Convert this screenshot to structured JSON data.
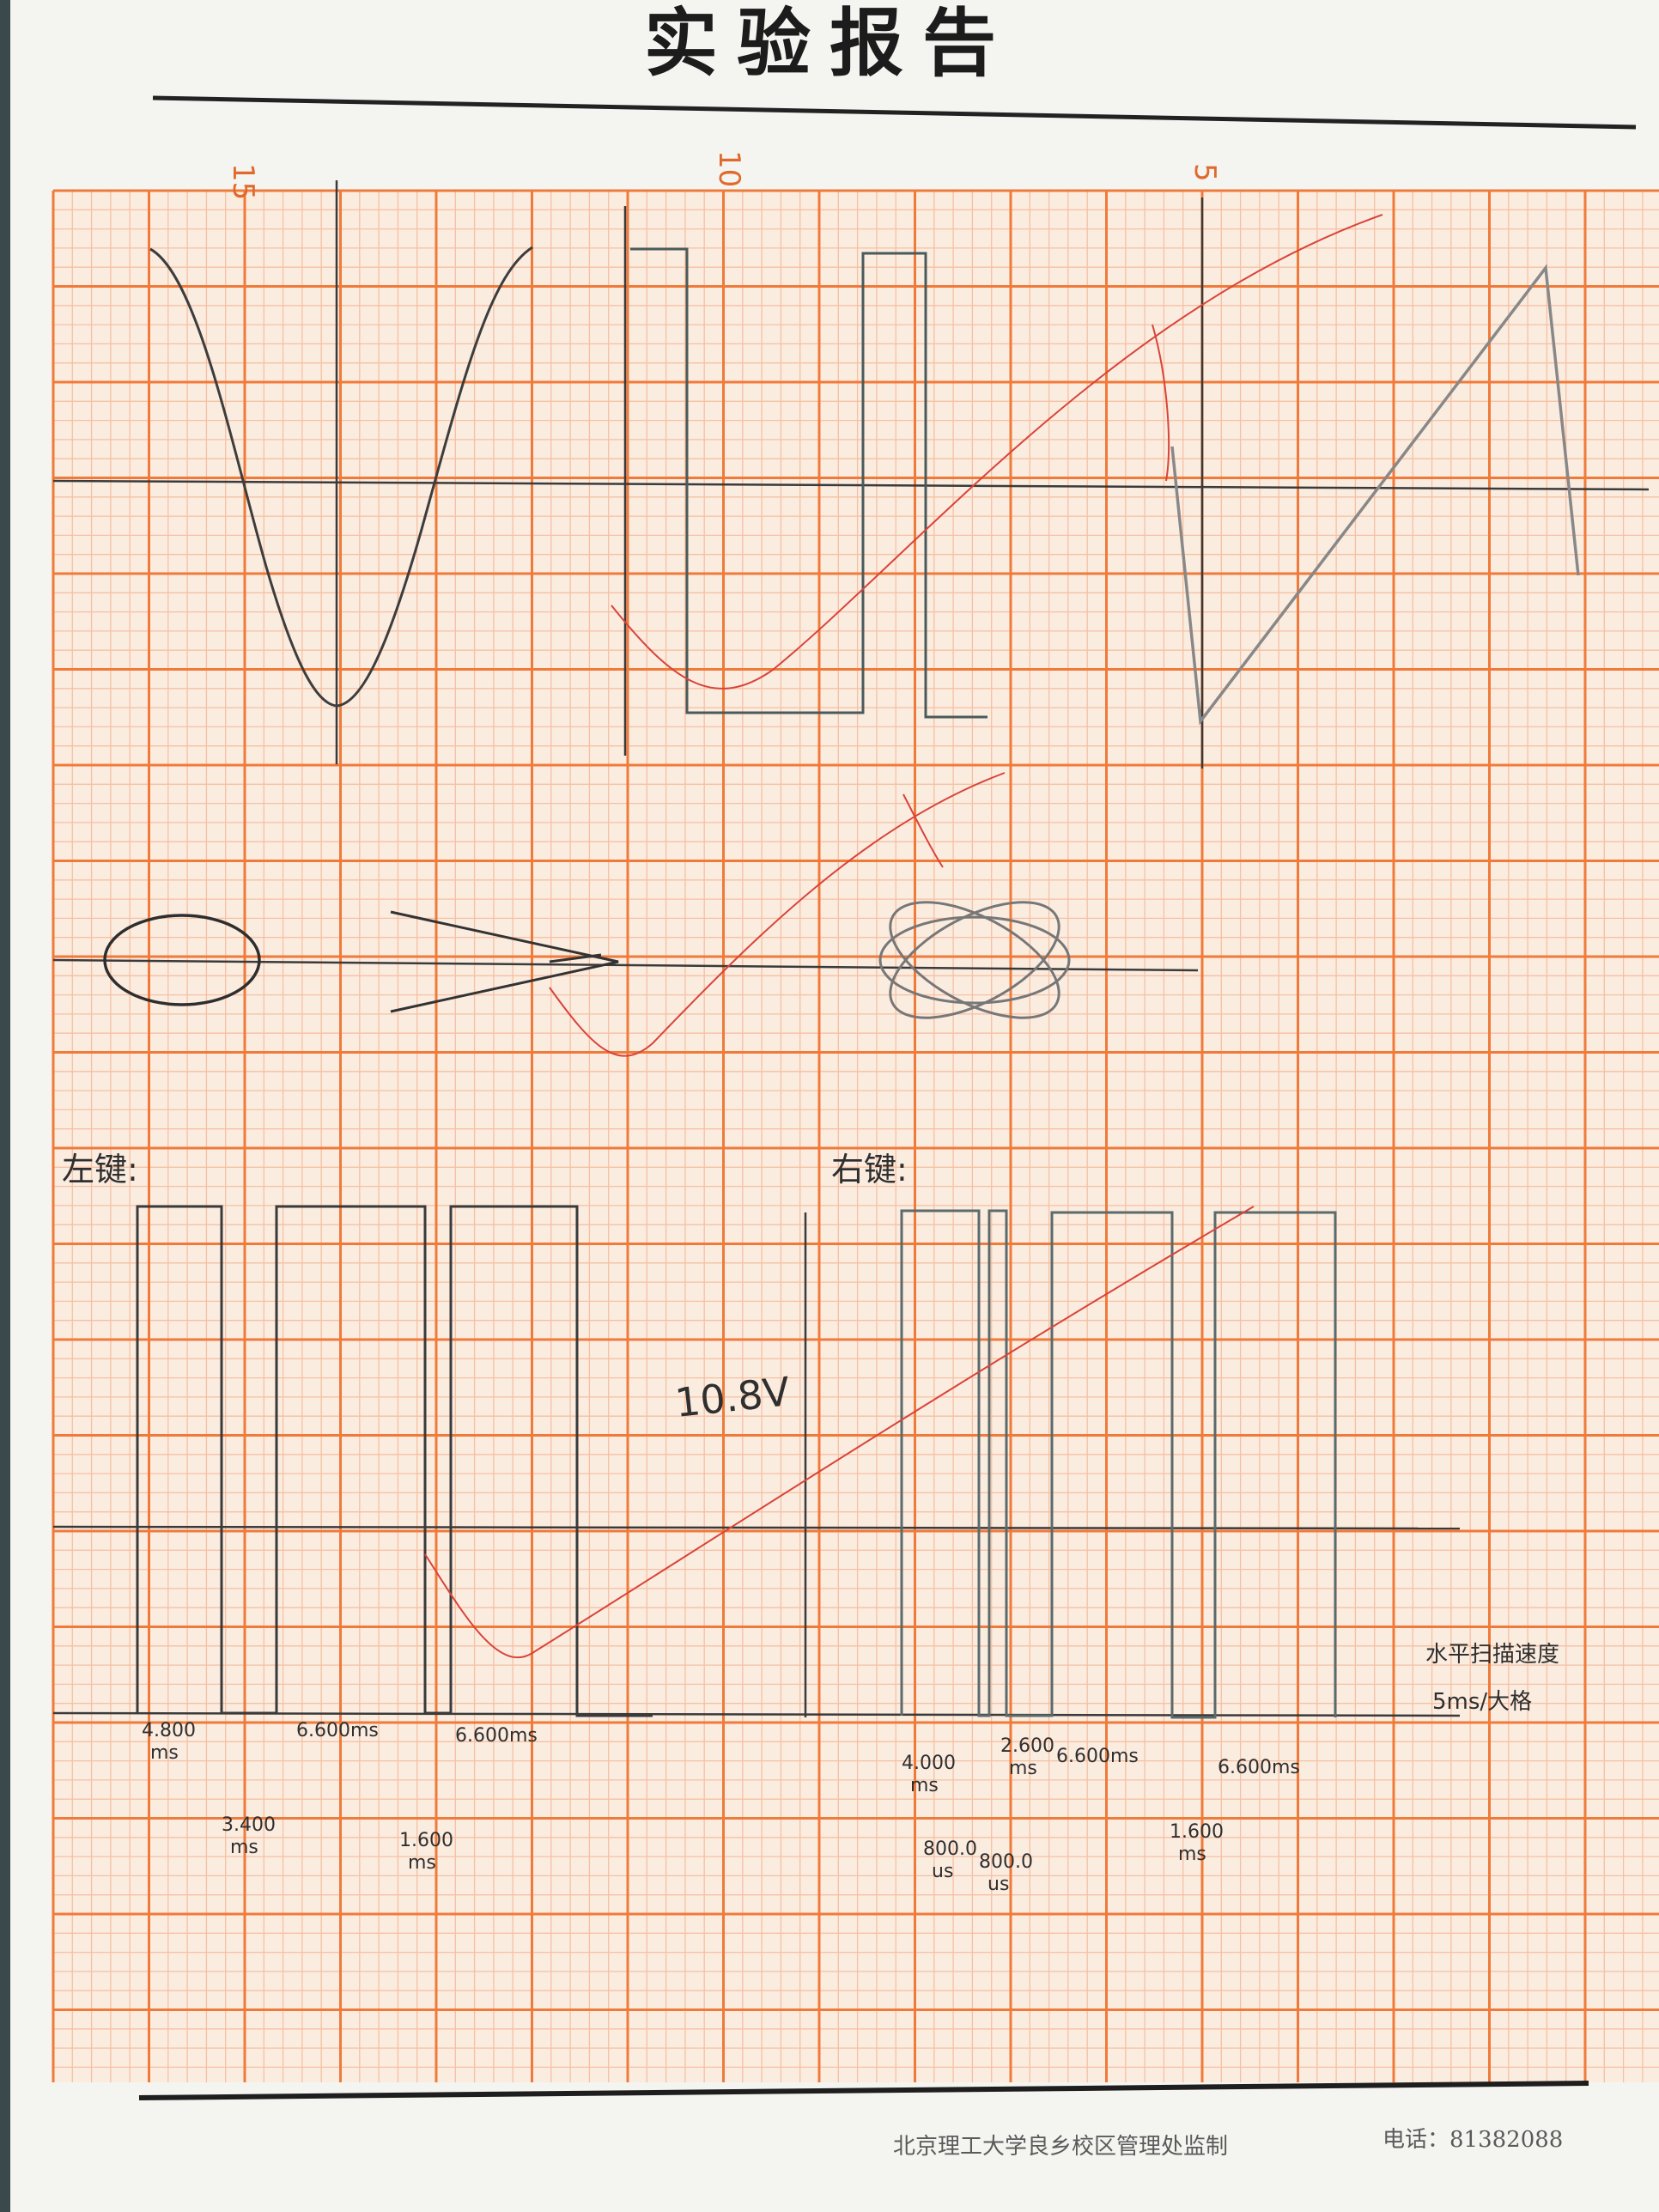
{
  "header": {
    "title": "实验报告"
  },
  "footer": {
    "issuer": "北京理工大学良乡校区管理处监制",
    "phone": "电话：81382088"
  },
  "grid_numbers": [
    "15",
    "10",
    "5"
  ],
  "annotations": {
    "left_key": "左键:",
    "right_key": "右键:",
    "amplitude": "10.8V",
    "note_line1": "水平扫描速度",
    "note_line2": "5ms/大格",
    "measurements": [
      {
        "value": "4.800",
        "unit": "ms"
      },
      {
        "value": "3.400",
        "unit": "ms"
      },
      {
        "value": "6.600ms",
        "unit": ""
      },
      {
        "value": "1.600",
        "unit": "ms"
      },
      {
        "value": "6.600ms",
        "unit": ""
      },
      {
        "value": "4.000",
        "unit": "ms"
      },
      {
        "value": "2.600",
        "unit": "ms"
      },
      {
        "value": "6.600ms",
        "unit": ""
      },
      {
        "value": "6.600ms",
        "unit": ""
      },
      {
        "value": "800.0",
        "unit": "us"
      },
      {
        "value": "800.0",
        "unit": "us"
      },
      {
        "value": "1.600",
        "unit": "ms"
      }
    ]
  },
  "colors": {
    "paper": "#fbeee3",
    "grid_fine": "#f6c3a6",
    "grid_major": "#f0793a",
    "pencil": "#3a3a3a",
    "red_trace": "#d9443a"
  }
}
